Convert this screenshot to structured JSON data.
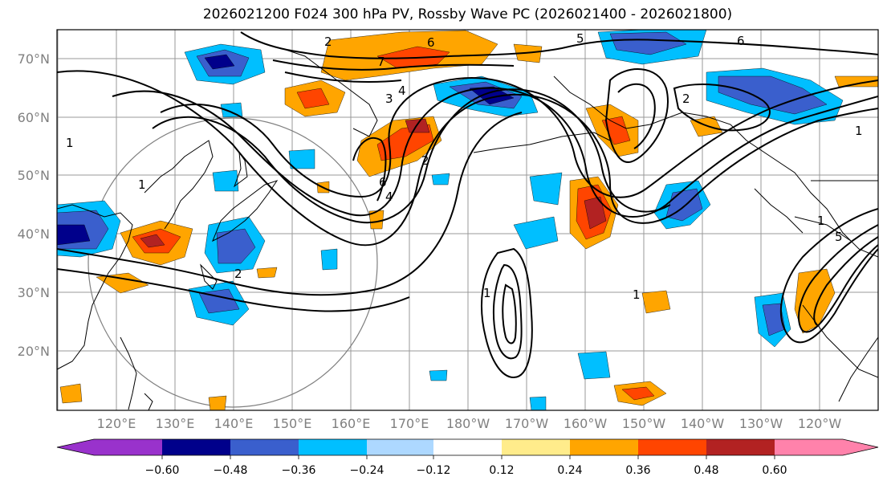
{
  "title": "2026021200 F024 300 hPa PV, Rossby Wave PC (2026021400 - 2026021800)",
  "lat_labels": [
    "70°N",
    "60°N",
    "50°N",
    "40°N",
    "30°N",
    "20°N"
  ],
  "lon_labels": [
    "120°E",
    "130°E",
    "140°E",
    "150°E",
    "160°E",
    "170°E",
    "180°W",
    "170°W",
    "160°W",
    "150°W",
    "140°W",
    "130°W",
    "120°W"
  ],
  "colorbar": {
    "ticks": [
      "−0.60",
      "−0.48",
      "−0.36",
      "−0.24",
      "−0.12",
      "0.12",
      "0.24",
      "0.36",
      "0.48",
      "0.60"
    ],
    "colors": [
      "#9932cc",
      "#00008b",
      "#3a5fcd",
      "#00bfff",
      "#add8ff",
      "#ffffff",
      "#ffec8b",
      "#ffa500",
      "#ff4500",
      "#b22222",
      "#ff82ab"
    ]
  },
  "contour_labels": [
    "2",
    "6",
    "7",
    "5",
    "6",
    "4",
    "3",
    "2",
    "1",
    "1",
    "6",
    "4",
    "1",
    "2",
    "1",
    "1",
    "1",
    "2",
    "5"
  ]
}
